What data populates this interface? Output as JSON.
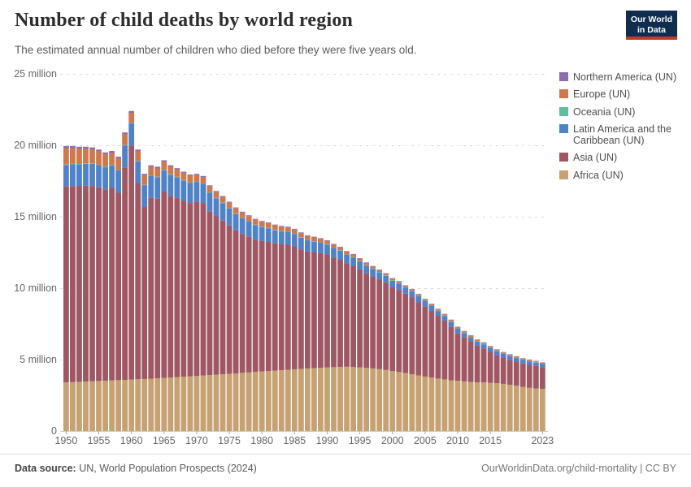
{
  "header": {
    "title": "Number of child deaths by world region",
    "subtitle": "The estimated annual number of children who died before they were five years old."
  },
  "logo": {
    "line1": "Our World",
    "line2": "in Data",
    "bg_color": "#102d50",
    "accent_color": "#c0392b"
  },
  "chart_data": {
    "type": "bar",
    "stacked": true,
    "title": "Number of child deaths by world region",
    "unit": "million",
    "ylim": [
      0,
      25
    ],
    "grid": "dashed-horizontal",
    "legend_position": "right",
    "yticks": [
      {
        "value": 0,
        "label": "0"
      },
      {
        "value": 5,
        "label": "5 million"
      },
      {
        "value": 10,
        "label": "10 million"
      },
      {
        "value": 15,
        "label": "15 million"
      },
      {
        "value": 20,
        "label": "20 million"
      },
      {
        "value": 25,
        "label": "25 million"
      }
    ],
    "xtick_years": [
      1950,
      1955,
      1960,
      1965,
      1970,
      1975,
      1980,
      1985,
      1990,
      1995,
      2000,
      2005,
      2010,
      2015,
      2023
    ],
    "years": [
      1950,
      1951,
      1952,
      1953,
      1954,
      1955,
      1956,
      1957,
      1958,
      1959,
      1960,
      1961,
      1962,
      1963,
      1964,
      1965,
      1966,
      1967,
      1968,
      1969,
      1970,
      1971,
      1972,
      1973,
      1974,
      1975,
      1976,
      1977,
      1978,
      1979,
      1980,
      1981,
      1982,
      1983,
      1984,
      1985,
      1986,
      1987,
      1988,
      1989,
      1990,
      1991,
      1992,
      1993,
      1994,
      1995,
      1996,
      1997,
      1998,
      1999,
      2000,
      2001,
      2002,
      2003,
      2004,
      2005,
      2006,
      2007,
      2008,
      2009,
      2010,
      2011,
      2012,
      2013,
      2014,
      2015,
      2016,
      2017,
      2018,
      2019,
      2020,
      2021,
      2022,
      2023
    ],
    "series": [
      {
        "name": "Africa (UN)",
        "color": "#C6A171",
        "values": [
          3.4,
          3.42,
          3.44,
          3.46,
          3.48,
          3.5,
          3.52,
          3.54,
          3.56,
          3.58,
          3.6,
          3.62,
          3.64,
          3.66,
          3.69,
          3.72,
          3.74,
          3.77,
          3.8,
          3.82,
          3.85,
          3.88,
          3.91,
          3.94,
          3.97,
          4.0,
          4.03,
          4.07,
          4.1,
          4.14,
          4.17,
          4.2,
          4.23,
          4.26,
          4.29,
          4.32,
          4.35,
          4.38,
          4.4,
          4.43,
          4.45,
          4.47,
          4.49,
          4.5,
          4.48,
          4.45,
          4.42,
          4.38,
          4.33,
          4.27,
          4.2,
          4.13,
          4.05,
          3.97,
          3.89,
          3.81,
          3.74,
          3.67,
          3.61,
          3.55,
          3.52,
          3.47,
          3.43,
          3.41,
          3.4,
          3.38,
          3.35,
          3.3,
          3.24,
          3.17,
          3.09,
          3.02,
          2.98,
          2.95
        ]
      },
      {
        "name": "Asia (UN)",
        "color": "#9E5763",
        "values": [
          13.72,
          13.73,
          13.69,
          13.71,
          13.67,
          13.56,
          13.39,
          13.5,
          13.12,
          14.85,
          16.38,
          13.71,
          12.04,
          12.66,
          12.57,
          13.04,
          12.72,
          12.55,
          12.31,
          12.14,
          12.22,
          12.08,
          11.47,
          11.09,
          10.76,
          10.39,
          10.01,
          9.72,
          9.5,
          9.26,
          9.13,
          9.04,
          8.9,
          8.81,
          8.75,
          8.61,
          8.37,
          8.18,
          8.1,
          8.03,
          7.91,
          7.68,
          7.5,
          7.23,
          7.09,
          6.86,
          6.62,
          6.44,
          6.27,
          6.11,
          5.86,
          5.75,
          5.56,
          5.4,
          5.14,
          4.9,
          4.64,
          4.37,
          4.09,
          3.76,
          3.31,
          3.07,
          2.82,
          2.56,
          2.38,
          2.16,
          1.97,
          1.84,
          1.75,
          1.69,
          1.64,
          1.61,
          1.58,
          1.52
        ]
      },
      {
        "name": "Latin America and the Caribbean (UN)",
        "color": "#4F82C6",
        "values": [
          1.5,
          1.52,
          1.53,
          1.54,
          1.55,
          1.55,
          1.55,
          1.56,
          1.56,
          1.56,
          1.55,
          1.54,
          1.53,
          1.52,
          1.51,
          1.5,
          1.48,
          1.45,
          1.43,
          1.4,
          1.37,
          1.34,
          1.3,
          1.26,
          1.22,
          1.18,
          1.14,
          1.1,
          1.06,
          1.02,
          0.98,
          0.95,
          0.92,
          0.9,
          0.88,
          0.85,
          0.82,
          0.79,
          0.76,
          0.72,
          0.69,
          0.66,
          0.63,
          0.6,
          0.58,
          0.56,
          0.54,
          0.52,
          0.5,
          0.48,
          0.46,
          0.44,
          0.42,
          0.41,
          0.4,
          0.38,
          0.37,
          0.36,
          0.35,
          0.34,
          0.33,
          0.32,
          0.31,
          0.3,
          0.29,
          0.28,
          0.27,
          0.26,
          0.26,
          0.25,
          0.25,
          0.25,
          0.23,
          0.22
        ]
      },
      {
        "name": "Oceania (UN)",
        "color": "#62BD9D",
        "values": [
          0.03,
          0.03,
          0.03,
          0.03,
          0.03,
          0.03,
          0.03,
          0.03,
          0.03,
          0.03,
          0.03,
          0.03,
          0.03,
          0.03,
          0.03,
          0.03,
          0.03,
          0.03,
          0.03,
          0.03,
          0.03,
          0.03,
          0.03,
          0.03,
          0.03,
          0.03,
          0.03,
          0.03,
          0.03,
          0.03,
          0.03,
          0.03,
          0.03,
          0.03,
          0.03,
          0.03,
          0.03,
          0.03,
          0.03,
          0.03,
          0.03,
          0.03,
          0.03,
          0.03,
          0.03,
          0.03,
          0.03,
          0.03,
          0.03,
          0.03,
          0.028,
          0.028,
          0.028,
          0.028,
          0.028,
          0.028,
          0.028,
          0.028,
          0.028,
          0.028,
          0.026,
          0.026,
          0.026,
          0.026,
          0.026,
          0.026,
          0.026,
          0.026,
          0.026,
          0.026,
          0.025,
          0.025,
          0.025,
          0.025
        ]
      },
      {
        "name": "Europe (UN)",
        "color": "#CF784C",
        "values": [
          1.15,
          1.1,
          1.06,
          1.01,
          0.97,
          0.92,
          0.87,
          0.83,
          0.79,
          0.75,
          0.71,
          0.67,
          0.64,
          0.61,
          0.58,
          0.55,
          0.52,
          0.5,
          0.48,
          0.46,
          0.44,
          0.43,
          0.41,
          0.4,
          0.39,
          0.38,
          0.37,
          0.36,
          0.35,
          0.34,
          0.33,
          0.32,
          0.31,
          0.3,
          0.3,
          0.29,
          0.28,
          0.27,
          0.26,
          0.24,
          0.22,
          0.21,
          0.2,
          0.19,
          0.17,
          0.16,
          0.15,
          0.14,
          0.13,
          0.12,
          0.115,
          0.11,
          0.105,
          0.1,
          0.1,
          0.095,
          0.09,
          0.09,
          0.085,
          0.085,
          0.08,
          0.08,
          0.08,
          0.075,
          0.075,
          0.075,
          0.07,
          0.07,
          0.07,
          0.065,
          0.065,
          0.065,
          0.06,
          0.06
        ]
      },
      {
        "name": "Northern America (UN)",
        "color": "#8B6FAB",
        "values": [
          0.15,
          0.15,
          0.15,
          0.15,
          0.15,
          0.14,
          0.14,
          0.14,
          0.14,
          0.13,
          0.13,
          0.13,
          0.12,
          0.12,
          0.12,
          0.11,
          0.11,
          0.1,
          0.1,
          0.1,
          0.09,
          0.09,
          0.08,
          0.08,
          0.08,
          0.07,
          0.07,
          0.07,
          0.06,
          0.06,
          0.06,
          0.06,
          0.06,
          0.055,
          0.055,
          0.055,
          0.05,
          0.05,
          0.05,
          0.05,
          0.05,
          0.05,
          0.045,
          0.045,
          0.045,
          0.045,
          0.04,
          0.04,
          0.04,
          0.04,
          0.04,
          0.04,
          0.038,
          0.038,
          0.038,
          0.038,
          0.037,
          0.036,
          0.036,
          0.035,
          0.035,
          0.035,
          0.034,
          0.034,
          0.034,
          0.033,
          0.033,
          0.032,
          0.032,
          0.032,
          0.031,
          0.031,
          0.03,
          0.03
        ]
      }
    ],
    "legend": [
      {
        "label": "Northern America (UN)",
        "color": "#8B6FAB"
      },
      {
        "label": "Europe (UN)",
        "color": "#CF784C"
      },
      {
        "label": "Oceania (UN)",
        "color": "#62BD9D"
      },
      {
        "label": "Latin America and the Caribbean (UN)",
        "color": "#4F82C6"
      },
      {
        "label": "Asia (UN)",
        "color": "#9E5763"
      },
      {
        "label": "Africa (UN)",
        "color": "#C6A171"
      }
    ]
  },
  "footer": {
    "datasource_label": "Data source:",
    "datasource_value": " UN, World Population Prospects (2024)",
    "credit_link": "OurWorldinData.org/child-mortality",
    "credit_license": " | CC BY"
  }
}
